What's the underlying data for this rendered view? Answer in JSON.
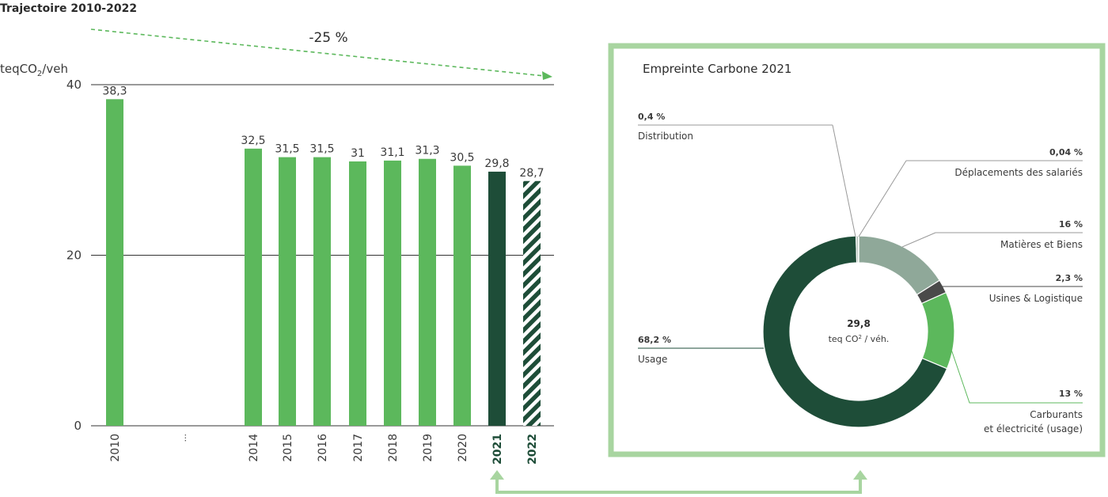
{
  "colors": {
    "bar": "#5cb85c",
    "bar_2021": "#1e4d38",
    "usage": "#1e4d38",
    "matieres": "#8fa899",
    "usines": "#4a4a4a",
    "carburants": "#5cb85c",
    "distribution": "#b5c2b9",
    "frame": "#a8d5a0",
    "arrow": "#5cb85c",
    "grid": "#333333"
  },
  "chart_data": [
    {
      "type": "bar",
      "title": "Trajectoire 2010-2022",
      "ylabel_main": "teqCO",
      "ylabel_sub": "2",
      "ylabel_tail": "/veh",
      "ylim": [
        0,
        40
      ],
      "yticks": [
        "0",
        "20",
        "40"
      ],
      "categories": [
        "2010",
        "...",
        "2014",
        "2015",
        "2016",
        "2017",
        "2018",
        "2019",
        "2020",
        "2021",
        "2022"
      ],
      "values": [
        38.3,
        null,
        32.5,
        31.5,
        31.5,
        31,
        31.1,
        31.3,
        30.5,
        29.8,
        28.7
      ],
      "labels": [
        "38,3",
        "",
        "32,5",
        "31,5",
        "31,5",
        "31",
        "31,1",
        "31,3",
        "30,5",
        "29,8",
        "28,7"
      ],
      "styles": [
        "normal",
        "gap",
        "normal",
        "normal",
        "normal",
        "normal",
        "normal",
        "normal",
        "normal",
        "dark",
        "hatched"
      ],
      "trend_label": "-25 %",
      "grid": true
    },
    {
      "type": "pie",
      "title": "Empreinte Carbone 2021",
      "center_value": "29,8",
      "center_unit": "teq CO",
      "center_unit_sup": "2",
      "center_unit_tail": " / véh.",
      "slices": [
        {
          "label": "Matières et Biens",
          "value": 16,
          "pct": "16 %",
          "color_key": "matieres"
        },
        {
          "label": "Usines & Logistique",
          "value": 2.3,
          "pct": "2,3 %",
          "color_key": "usines"
        },
        {
          "label": "Carburants",
          "label2": "et électricité (usage)",
          "value": 13,
          "pct": "13 %",
          "color_key": "carburants"
        },
        {
          "label": "Usage",
          "value": 68.2,
          "pct": "68,2 %",
          "color_key": "usage"
        },
        {
          "label": "Distribution",
          "value": 0.4,
          "pct": "0,4 %",
          "color_key": "distribution"
        },
        {
          "label": "Déplacements des salariés",
          "value": 0.04,
          "pct": "0,04 %",
          "color_key": "distribution"
        }
      ]
    }
  ]
}
